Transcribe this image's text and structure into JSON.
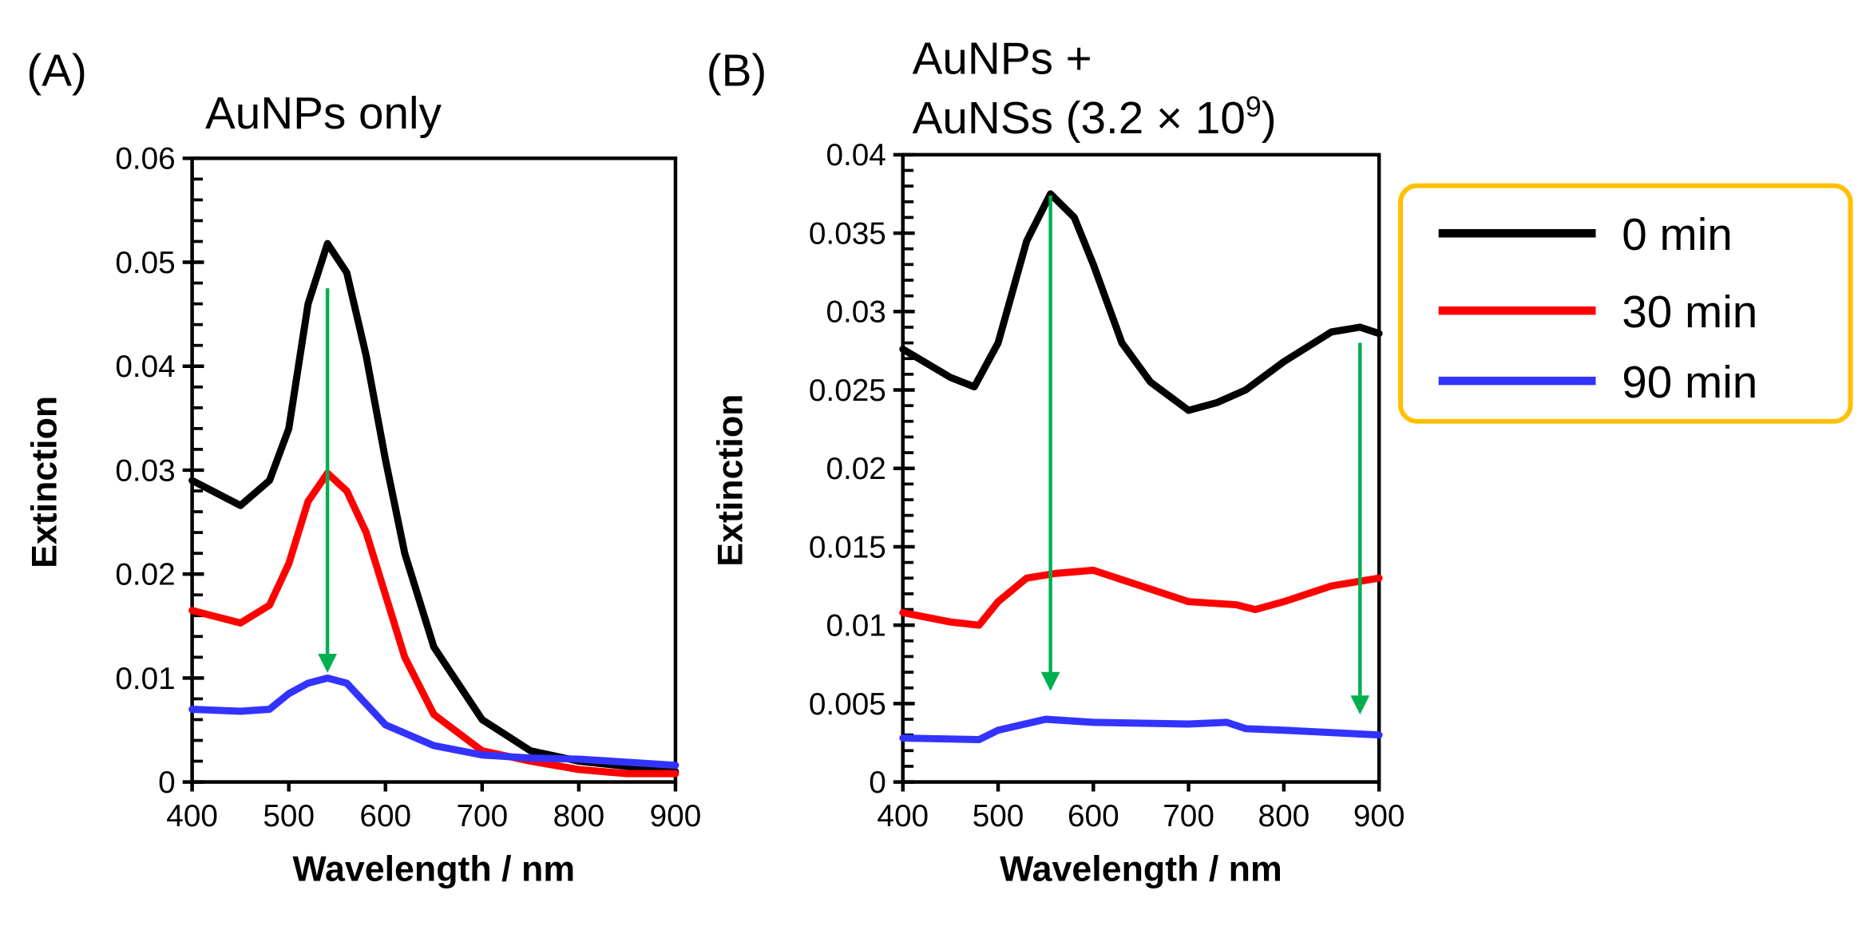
{
  "chart_data": [
    {
      "type": "line",
      "panel_label": "(A)",
      "title": "AuNPs only",
      "xlabel": "Wavelength / nm",
      "ylabel": "Extinction",
      "xlim": [
        400,
        900
      ],
      "ylim": [
        0,
        0.06
      ],
      "xticks": [
        400,
        500,
        600,
        700,
        800,
        900
      ],
      "yticks": [
        "0",
        "0.01",
        "0.02",
        "0.03",
        "0.04",
        "0.05",
        "0.06"
      ],
      "y_minor_step": 0.002,
      "grid": false,
      "series": [
        {
          "name": "0 min",
          "color": "#000000",
          "x": [
            400,
            450,
            480,
            500,
            520,
            540,
            560,
            580,
            600,
            620,
            650,
            700,
            750,
            800,
            850,
            900
          ],
          "y": [
            0.029,
            0.0266,
            0.029,
            0.034,
            0.046,
            0.0518,
            0.049,
            0.041,
            0.031,
            0.022,
            0.013,
            0.006,
            0.003,
            0.002,
            0.0015,
            0.001
          ]
        },
        {
          "name": "30 min",
          "color": "#ff0000",
          "x": [
            400,
            450,
            480,
            500,
            520,
            540,
            560,
            580,
            600,
            620,
            650,
            700,
            750,
            800,
            850,
            900
          ],
          "y": [
            0.0165,
            0.0153,
            0.017,
            0.021,
            0.027,
            0.0297,
            0.028,
            0.024,
            0.018,
            0.012,
            0.0065,
            0.003,
            0.002,
            0.0012,
            0.0008,
            0.0008
          ]
        },
        {
          "name": "90 min",
          "color": "#3333ff",
          "x": [
            400,
            450,
            480,
            500,
            520,
            540,
            560,
            580,
            600,
            650,
            700,
            750,
            800,
            850,
            900
          ],
          "y": [
            0.007,
            0.0068,
            0.007,
            0.0085,
            0.0095,
            0.01,
            0.0095,
            0.0075,
            0.0055,
            0.0035,
            0.0026,
            0.0023,
            0.0022,
            0.0019,
            0.0016
          ]
        }
      ],
      "arrows": [
        {
          "x": 540,
          "y_from": 0.0475,
          "y_to": 0.0105,
          "color": "#00b050"
        }
      ]
    },
    {
      "type": "line",
      "panel_label": "(B)",
      "title": "AuNPs +",
      "title_line2": "AuNSs (3.2 × 10",
      "title_sup": "9",
      "title_close": ")",
      "xlabel": "Wavelength / nm",
      "ylabel": "Extinction",
      "xlim": [
        400,
        900
      ],
      "ylim": [
        0,
        0.04
      ],
      "xticks": [
        400,
        500,
        600,
        700,
        800,
        900
      ],
      "yticks": [
        "0",
        "0.005",
        "0.01",
        "0.015",
        "0.02",
        "0.025",
        "0.03",
        "0.035",
        "0.04"
      ],
      "y_minor_step": 0.001,
      "grid": false,
      "series": [
        {
          "name": "0 min",
          "color": "#000000",
          "x": [
            400,
            450,
            475,
            500,
            530,
            555,
            580,
            600,
            630,
            660,
            700,
            730,
            760,
            800,
            850,
            880,
            900
          ],
          "y": [
            0.0276,
            0.0258,
            0.0252,
            0.028,
            0.0345,
            0.0375,
            0.036,
            0.033,
            0.028,
            0.0255,
            0.0237,
            0.0242,
            0.025,
            0.0268,
            0.0287,
            0.029,
            0.0286
          ]
        },
        {
          "name": "30 min",
          "color": "#ff0000",
          "x": [
            400,
            450,
            480,
            500,
            530,
            560,
            600,
            650,
            700,
            750,
            770,
            800,
            850,
            900
          ],
          "y": [
            0.0108,
            0.0102,
            0.01,
            0.0115,
            0.013,
            0.0133,
            0.0135,
            0.0125,
            0.0115,
            0.0113,
            0.011,
            0.0115,
            0.0125,
            0.013
          ]
        },
        {
          "name": "90 min",
          "color": "#3333ff",
          "x": [
            400,
            480,
            500,
            550,
            600,
            700,
            740,
            760,
            800,
            900
          ],
          "y": [
            0.0028,
            0.0027,
            0.0033,
            0.004,
            0.0038,
            0.0037,
            0.0038,
            0.0034,
            0.0033,
            0.003
          ]
        }
      ],
      "arrows": [
        {
          "x": 555,
          "y_from": 0.0374,
          "y_to": 0.0058,
          "color": "#00b050"
        },
        {
          "x": 880,
          "y_from": 0.028,
          "y_to": 0.0043,
          "color": "#00b050"
        }
      ]
    }
  ],
  "legend": {
    "placement": "right",
    "border_color": "#ffc000",
    "items": [
      {
        "label": "0 min",
        "color": "#000000"
      },
      {
        "label": "30 min",
        "color": "#ff0000"
      },
      {
        "label": "90 min",
        "color": "#3333ff"
      }
    ]
  }
}
